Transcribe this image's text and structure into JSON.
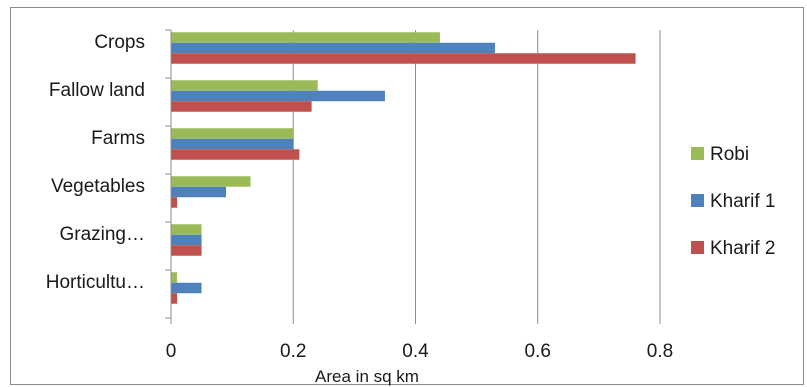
{
  "chart_data": {
    "type": "bar",
    "orientation": "horizontal",
    "categories": [
      "Crops",
      "Fallow land",
      "Farms",
      "Vegetables",
      "Grazing…",
      "Horticultu…"
    ],
    "series": [
      {
        "name": "Robi",
        "color": "#9bbb59",
        "values": [
          0.44,
          0.24,
          0.2,
          0.13,
          0.05,
          0.01
        ]
      },
      {
        "name": "Kharif 1",
        "color": "#4f81bd",
        "values": [
          0.53,
          0.35,
          0.2,
          0.09,
          0.05,
          0.05
        ]
      },
      {
        "name": "Kharif 2",
        "color": "#c0504d",
        "values": [
          0.76,
          0.23,
          0.21,
          0.01,
          0.05,
          0.01
        ]
      }
    ],
    "xlabel": "Area in sq km",
    "ylabel": "",
    "title": "",
    "xlim": [
      0,
      0.8
    ],
    "xticks": [
      "0",
      "0.2",
      "0.4",
      "0.6",
      "0.8"
    ],
    "grid": "vertical",
    "legend": "right"
  }
}
